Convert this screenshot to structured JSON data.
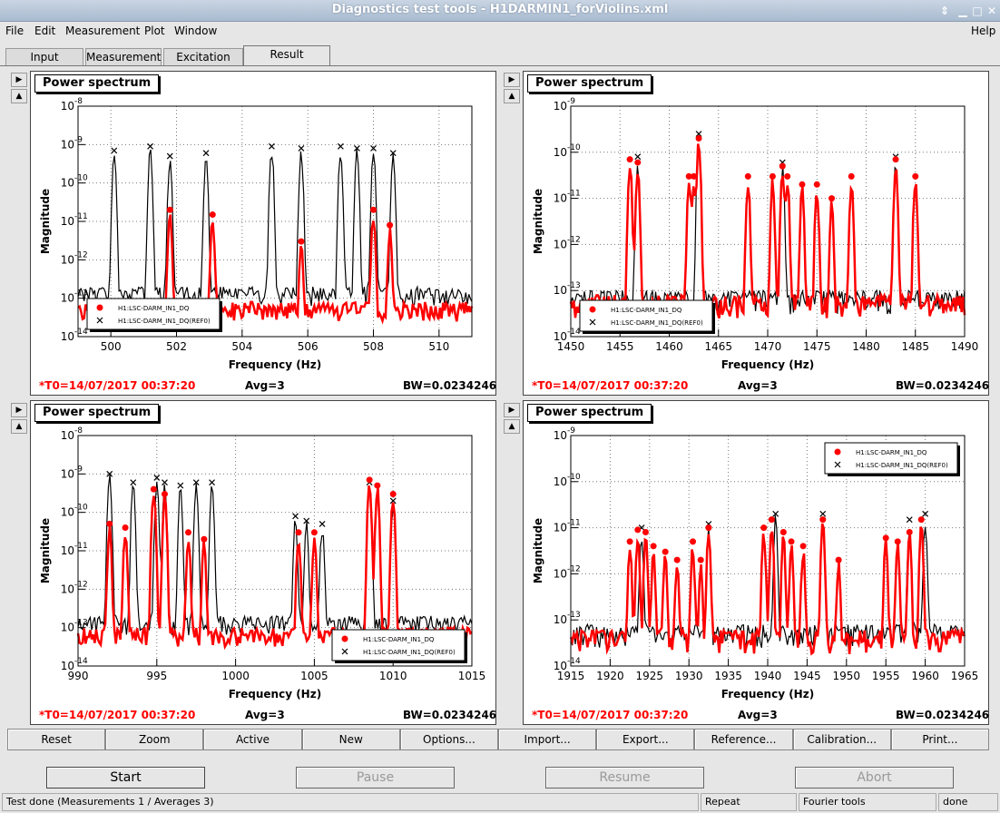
{
  "window": {
    "title": "Diagnostics test tools - H1DARMIN1_forViolins.xml"
  },
  "menu": [
    "File",
    "Edit",
    "Measurement",
    "Plot",
    "Window"
  ],
  "menu_help": "Help",
  "tabs": [
    "Input",
    "Measurement",
    "Excitation",
    "Result"
  ],
  "active_tab": "Result",
  "colors": {
    "meas": "#ff0000",
    "ref": "#000000"
  },
  "panels": [
    {
      "title": "Power spectrum",
      "t0": "*T0=14/07/2017 00:37:20",
      "avg": "Avg=3",
      "bw": "BW=0.0234246",
      "legend": [
        "H1:LSC-DARM_IN1_DQ",
        "H1:LSC-DARM_IN1_DQ(REF0)"
      ]
    },
    {
      "title": "Power spectrum",
      "t0": "*T0=14/07/2017 00:37:20",
      "avg": "Avg=3",
      "bw": "BW=0.0234246",
      "legend": [
        "H1:LSC-DARM_IN1_DQ",
        "H1:LSC-DARM_IN1_DQ(REF0)"
      ]
    },
    {
      "title": "Power spectrum",
      "t0": "*T0=14/07/2017 00:37:20",
      "avg": "Avg=3",
      "bw": "BW=0.0234246",
      "legend": [
        "H1:LSC-DARM_IN1_DQ",
        "H1:LSC-DARM_IN1_DQ(REF0)"
      ]
    },
    {
      "title": "Power spectrum",
      "t0": "*T0=14/07/2017 00:37:20",
      "avg": "Avg=3",
      "bw": "BW=0.0234246",
      "legend": [
        "H1:LSC-DARM_IN1_DQ",
        "H1:LSC-DARM_IN1_DQ(REF0)"
      ]
    }
  ],
  "chart_data": [
    {
      "type": "line",
      "xlabel": "Frequency (Hz)",
      "ylabel": "Magnitude",
      "yscale": "log",
      "xlim": [
        499,
        511
      ],
      "ylim": [
        1e-14,
        1e-08
      ],
      "xticks": [
        500,
        502,
        504,
        506,
        508,
        510
      ],
      "ylabels": [
        "10^-14",
        "10^-13",
        "10^-12",
        "10^-11",
        "10^-10",
        "10^-9",
        "10^-8"
      ],
      "series": [
        {
          "name": "H1:LSC-DARM_IN1_DQ",
          "color": "#ff0000",
          "baseline": 4e-14,
          "peaks": [
            [
              501.8,
              2e-11
            ],
            [
              503.1,
              1.5e-11
            ],
            [
              505.8,
              3e-12
            ],
            [
              508.0,
              2e-11
            ],
            [
              508.5,
              8e-12
            ]
          ]
        },
        {
          "name": "H1:LSC-DARM_IN1_DQ(REF0)",
          "color": "#000000",
          "baseline": 1e-13,
          "peaks": [
            [
              500.1,
              7e-10
            ],
            [
              501.2,
              9e-10
            ],
            [
              501.8,
              5e-10
            ],
            [
              502.9,
              6e-10
            ],
            [
              504.9,
              9e-10
            ],
            [
              505.8,
              8e-10
            ],
            [
              507.0,
              9e-10
            ],
            [
              507.5,
              8e-10
            ],
            [
              508.0,
              8e-10
            ],
            [
              508.6,
              6e-10
            ]
          ]
        }
      ]
    },
    {
      "type": "line",
      "xlabel": "Frequency (Hz)",
      "ylabel": "Magnitude",
      "yscale": "log",
      "xlim": [
        1450,
        1490
      ],
      "ylim": [
        1e-14,
        1e-09
      ],
      "xticks": [
        1450,
        1455,
        1460,
        1465,
        1470,
        1475,
        1480,
        1485,
        1490
      ],
      "ylabels": [
        "10^-14",
        "10^-13",
        "10^-12",
        "10^-11",
        "10^-10",
        "10^-9"
      ],
      "series": [
        {
          "name": "H1:LSC-DARM_IN1_DQ",
          "color": "#ff0000",
          "baseline": 4e-14,
          "peaks": [
            [
              1456,
              7e-11
            ],
            [
              1456.8,
              6e-11
            ],
            [
              1462,
              3e-11
            ],
            [
              1462.5,
              3e-11
            ],
            [
              1463,
              2e-10
            ],
            [
              1468,
              3e-11
            ],
            [
              1470.5,
              3e-11
            ],
            [
              1471.5,
              5e-11
            ],
            [
              1472,
              3e-11
            ],
            [
              1473.5,
              2e-11
            ],
            [
              1475,
              2e-11
            ],
            [
              1476.5,
              1e-11
            ],
            [
              1478.5,
              3e-11
            ],
            [
              1483,
              7e-11
            ],
            [
              1485,
              3e-11
            ]
          ]
        },
        {
          "name": "H1:LSC-DARM_IN1_DQ(REF0)",
          "color": "#000000",
          "baseline": 5e-14,
          "peaks": [
            [
              1456.8,
              8e-11
            ],
            [
              1463,
              2.5e-10
            ],
            [
              1471.5,
              6e-11
            ],
            [
              1483,
              8e-11
            ]
          ]
        }
      ]
    },
    {
      "type": "line",
      "xlabel": "Frequency (Hz)",
      "ylabel": "Magnitude",
      "yscale": "log",
      "xlim": [
        990,
        1015
      ],
      "ylim": [
        1e-14,
        1e-08
      ],
      "xticks": [
        990,
        995,
        1000,
        1005,
        1010,
        1015
      ],
      "ylabels": [
        "10^-14",
        "10^-13",
        "10^-12",
        "10^-11",
        "10^-10",
        "10^-9",
        "10^-8"
      ],
      "series": [
        {
          "name": "H1:LSC-DARM_IN1_DQ",
          "color": "#ff0000",
          "baseline": 5e-14,
          "peaks": [
            [
              992,
              5e-11
            ],
            [
              993,
              4e-11
            ],
            [
              994.8,
              4e-10
            ],
            [
              995.5,
              3e-10
            ],
            [
              997,
              3e-11
            ],
            [
              998,
              2e-11
            ],
            [
              1004,
              3e-11
            ],
            [
              1005,
              3e-11
            ],
            [
              1008.5,
              7e-10
            ],
            [
              1009,
              5e-10
            ],
            [
              1010,
              3e-10
            ]
          ]
        },
        {
          "name": "H1:LSC-DARM_IN1_DQ(REF0)",
          "color": "#000000",
          "baseline": 1e-13,
          "peaks": [
            [
              992,
              1e-09
            ],
            [
              993.5,
              6e-10
            ],
            [
              995,
              8e-10
            ],
            [
              995.5,
              6e-10
            ],
            [
              996.5,
              5e-10
            ],
            [
              997.5,
              6e-10
            ],
            [
              998.5,
              6e-10
            ],
            [
              1003.8,
              8e-11
            ],
            [
              1004.5,
              6e-11
            ],
            [
              1005.5,
              5e-11
            ],
            [
              1008.5,
              6e-10
            ],
            [
              1010,
              2e-10
            ]
          ]
        }
      ]
    },
    {
      "type": "line",
      "xlabel": "Frequency (Hz)",
      "ylabel": "Magnitude",
      "yscale": "log",
      "xlim": [
        1915,
        1965
      ],
      "ylim": [
        1e-14,
        1e-09
      ],
      "xticks": [
        1915,
        1920,
        1925,
        1930,
        1935,
        1940,
        1945,
        1950,
        1955,
        1960,
        1965
      ],
      "ylabels": [
        "10^-14",
        "10^-13",
        "10^-12",
        "10^-11",
        "10^-10",
        "10^-9"
      ],
      "series": [
        {
          "name": "H1:LSC-DARM_IN1_DQ",
          "color": "#ff0000",
          "baseline": 3e-14,
          "peaks": [
            [
              1922.5,
              5e-12
            ],
            [
              1923.5,
              9e-12
            ],
            [
              1924.5,
              8e-12
            ],
            [
              1925.5,
              4e-12
            ],
            [
              1927,
              3e-12
            ],
            [
              1928.5,
              2e-12
            ],
            [
              1930.5,
              5e-12
            ],
            [
              1931.5,
              2e-12
            ],
            [
              1932.5,
              1e-11
            ],
            [
              1939.5,
              1e-11
            ],
            [
              1940.5,
              1.5e-11
            ],
            [
              1942,
              8e-12
            ],
            [
              1943,
              5e-12
            ],
            [
              1944.5,
              4e-12
            ],
            [
              1947,
              1.5e-11
            ],
            [
              1949,
              2e-12
            ],
            [
              1955,
              6e-12
            ],
            [
              1956.5,
              5e-12
            ],
            [
              1958,
              8e-12
            ],
            [
              1959.5,
              1.5e-11
            ]
          ]
        },
        {
          "name": "H1:LSC-DARM_IN1_DQ(REF0)",
          "color": "#000000",
          "baseline": 4e-14,
          "peaks": [
            [
              1924,
              1e-11
            ],
            [
              1932.5,
              1.2e-11
            ],
            [
              1941,
              2e-11
            ],
            [
              1947,
              2e-11
            ],
            [
              1958,
              1.5e-11
            ],
            [
              1960,
              2e-11
            ]
          ]
        }
      ]
    }
  ],
  "plot_buttons": [
    "Reset",
    "Zoom",
    "Active",
    "New",
    "Options...",
    "Import...",
    "Export...",
    "Reference...",
    "Calibration...",
    "Print..."
  ],
  "control_buttons": {
    "start": "Start",
    "pause": "Pause",
    "resume": "Resume",
    "abort": "Abort"
  },
  "status": {
    "main": "Test done (Measurements 1 / Averages 3)",
    "mode": "Repeat",
    "tool": "Fourier tools",
    "state": "done"
  }
}
